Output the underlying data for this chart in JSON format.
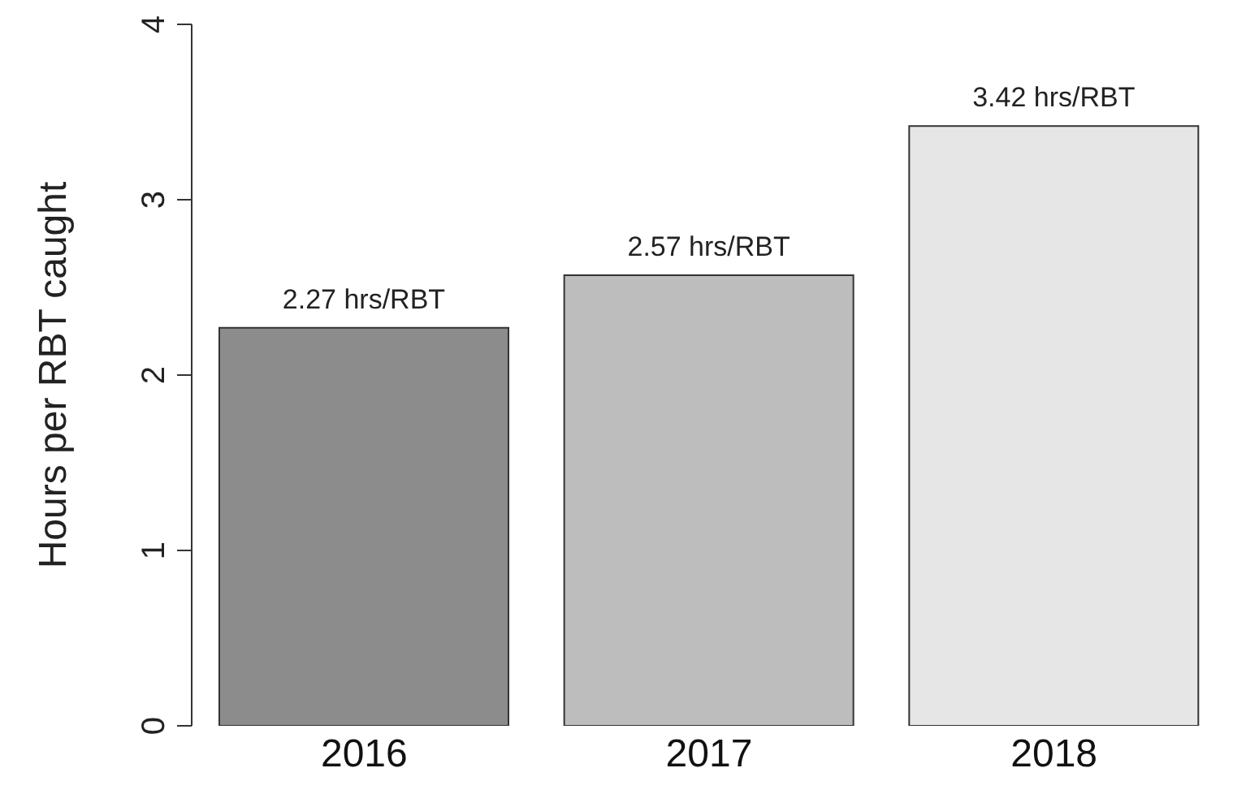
{
  "chart_data": {
    "type": "bar",
    "ylabel": "Hours per RBT caught",
    "categories": [
      "2016",
      "2017",
      "2018"
    ],
    "values": [
      2.27,
      2.57,
      3.42
    ],
    "colors": [
      "#8c8c8c",
      "#bdbdbd",
      "#e6e6e6"
    ],
    "value_labels": [
      "2.27 hrs/RBT",
      "2.57 hrs/RBT",
      "3.42 hrs/RBT"
    ],
    "ylim": [
      0,
      4
    ],
    "yticks": [
      0,
      1,
      2,
      3,
      4
    ],
    "grid": false,
    "legend": false
  }
}
